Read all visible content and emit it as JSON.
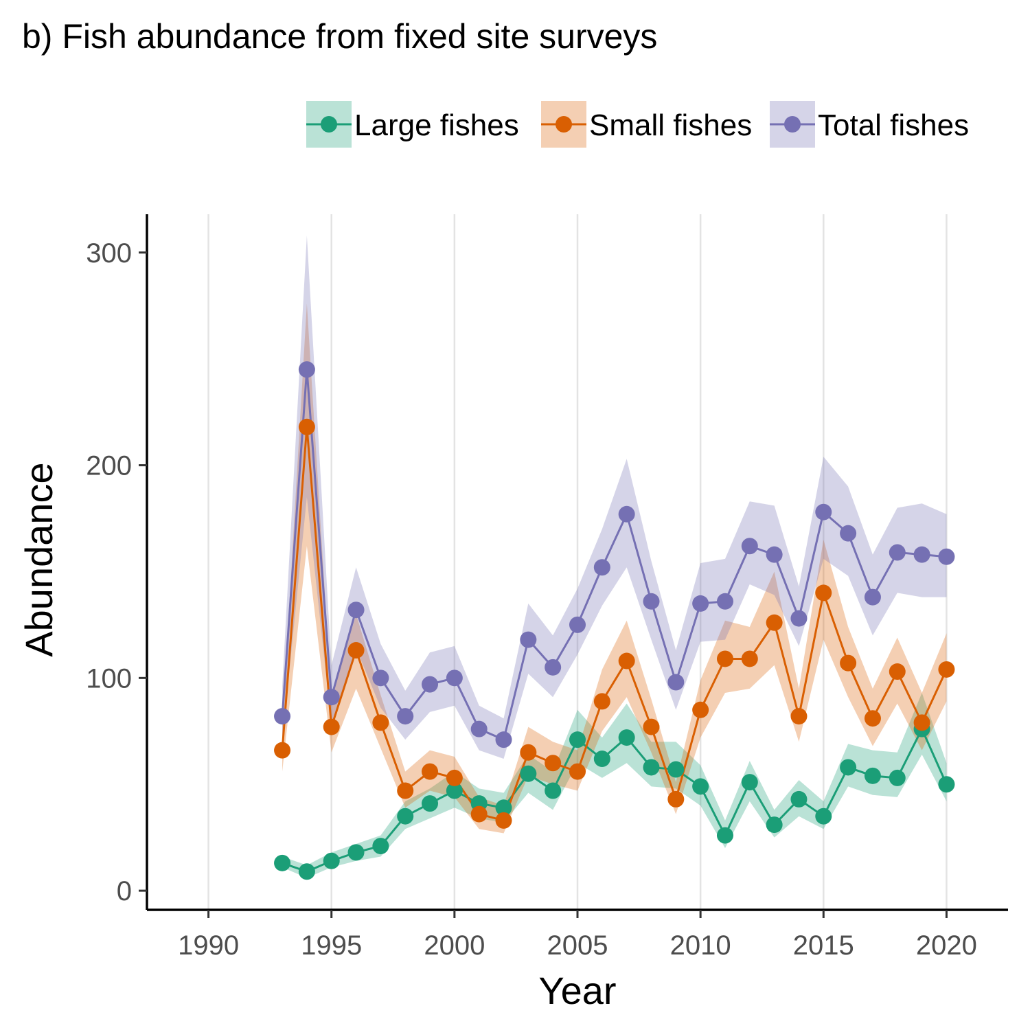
{
  "title": "b) Fish abundance from fixed site surveys",
  "chart_data": {
    "type": "line",
    "title": "b) Fish abundance from fixed site surveys",
    "xlabel": "Year",
    "ylabel": "Abundance",
    "xlim": [
      1987.5,
      2022.5
    ],
    "ylim": [
      -9,
      318
    ],
    "xticks": [
      1990,
      1995,
      2000,
      2005,
      2010,
      2015,
      2020
    ],
    "yticks": [
      0,
      100,
      200,
      300
    ],
    "grid": "vertical major lines",
    "legend_position": "top-right",
    "x": [
      1993,
      1994,
      1995,
      1996,
      1997,
      1998,
      1999,
      2000,
      2001,
      2002,
      2003,
      2004,
      2005,
      2006,
      2007,
      2008,
      2009,
      2010,
      2011,
      2012,
      2013,
      2014,
      2015,
      2016,
      2017,
      2018,
      2019,
      2020
    ],
    "series": [
      {
        "name": "Large fishes",
        "color": "#1b9e77",
        "values": [
          13,
          9,
          14,
          18,
          21,
          35,
          41,
          47,
          41,
          39,
          55,
          47,
          71,
          62,
          72,
          58,
          57,
          49,
          26,
          51,
          31,
          43,
          35,
          58,
          54,
          53,
          76,
          50
        ],
        "lower": [
          11,
          6,
          11,
          14,
          16,
          29,
          34,
          39,
          34,
          32,
          46,
          38,
          60,
          53,
          60,
          49,
          48,
          40,
          20,
          42,
          25,
          35,
          29,
          49,
          45,
          44,
          64,
          42
        ],
        "upper": [
          16,
          12,
          18,
          22,
          26,
          42,
          48,
          56,
          48,
          46,
          64,
          56,
          85,
          72,
          88,
          70,
          70,
          59,
          33,
          61,
          38,
          52,
          42,
          69,
          66,
          65,
          93,
          60
        ]
      },
      {
        "name": "Small fishes",
        "color": "#d95f02",
        "values": [
          66,
          218,
          77,
          113,
          79,
          47,
          56,
          53,
          36,
          33,
          65,
          60,
          56,
          89,
          108,
          77,
          43,
          85,
          109,
          109,
          126,
          82,
          140,
          107,
          81,
          103,
          79,
          104
        ],
        "lower": [
          56,
          162,
          65,
          95,
          67,
          39,
          47,
          44,
          29,
          27,
          54,
          50,
          47,
          75,
          91,
          65,
          36,
          72,
          93,
          95,
          106,
          70,
          118,
          91,
          68,
          88,
          66,
          89
        ],
        "upper": [
          78,
          276,
          90,
          130,
          92,
          56,
          66,
          63,
          44,
          40,
          77,
          70,
          66,
          104,
          127,
          90,
          51,
          99,
          127,
          124,
          150,
          95,
          165,
          124,
          95,
          119,
          93,
          121
        ]
      },
      {
        "name": "Total fishes",
        "color": "#7570b3",
        "values": [
          82,
          245,
          91,
          132,
          100,
          82,
          97,
          100,
          76,
          71,
          118,
          105,
          125,
          152,
          177,
          136,
          98,
          135,
          136,
          162,
          158,
          128,
          178,
          168,
          138,
          159,
          158,
          157
        ],
        "lower": [
          70,
          185,
          78,
          114,
          86,
          71,
          84,
          87,
          66,
          62,
          102,
          91,
          111,
          134,
          152,
          118,
          85,
          117,
          118,
          144,
          139,
          115,
          156,
          148,
          120,
          140,
          138,
          138
        ],
        "upper": [
          96,
          308,
          106,
          152,
          116,
          94,
          112,
          115,
          87,
          81,
          135,
          120,
          142,
          170,
          203,
          155,
          113,
          154,
          156,
          183,
          181,
          143,
          204,
          190,
          158,
          180,
          182,
          177
        ]
      }
    ]
  }
}
